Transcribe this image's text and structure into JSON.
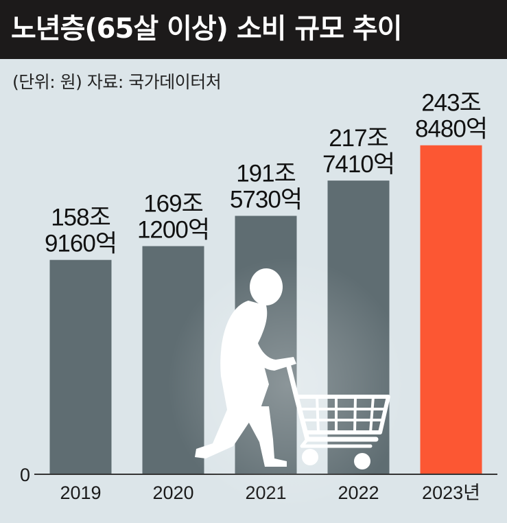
{
  "header": {
    "title": "노년층(65살 이상) 소비 규모 추이",
    "subtitle": "(단위: 원)  자료: 국가데이터처"
  },
  "colors": {
    "bar": "#5f6d72",
    "highlight": "#fc5733",
    "background": "#dce5e9",
    "title_bar": "#1c1a1a"
  },
  "illustration": {
    "icon": "elderly-person-with-shopping-cart-icon"
  },
  "chart_data": {
    "type": "bar",
    "categories": [
      "2019",
      "2020",
      "2021",
      "2022",
      "2023년"
    ],
    "values": [
      158.916,
      169.12,
      191.573,
      217.741,
      243.848
    ],
    "value_labels": [
      [
        "158조",
        "9160억"
      ],
      [
        "169조",
        "1200억"
      ],
      [
        "191조",
        "5730억"
      ],
      [
        "217조",
        "7410억"
      ],
      [
        "243조",
        "8480억"
      ]
    ],
    "highlight_index": 4,
    "y_tick_label": "0",
    "ylim": [
      0,
      260
    ],
    "xlabel": "",
    "ylabel": "",
    "grid": false,
    "legend": "none"
  }
}
